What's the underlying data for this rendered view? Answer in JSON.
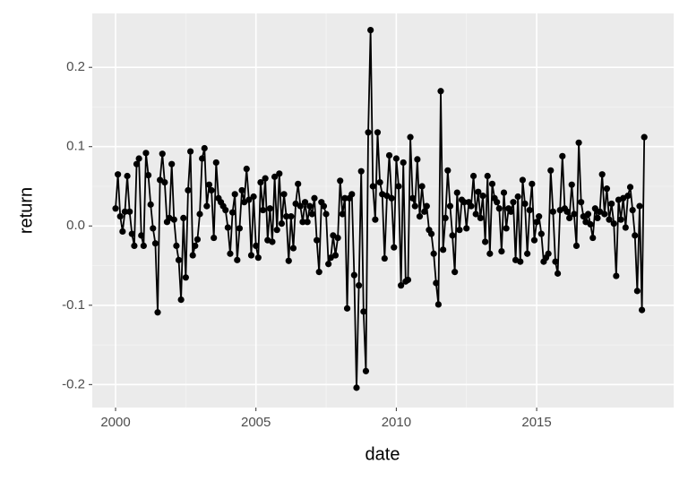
{
  "chart_data": {
    "type": "line",
    "xlabel": "date",
    "ylabel": "return",
    "color": "#000000",
    "grid": true,
    "x": [
      2000,
      2000.083,
      2000.167,
      2000.25,
      2000.333,
      2000.417,
      2000.5,
      2000.583,
      2000.667,
      2000.75,
      2000.833,
      2000.917,
      2001,
      2001.083,
      2001.167,
      2001.25,
      2001.333,
      2001.417,
      2001.5,
      2001.583,
      2001.667,
      2001.75,
      2001.833,
      2001.917,
      2002,
      2002.083,
      2002.167,
      2002.25,
      2002.333,
      2002.417,
      2002.5,
      2002.583,
      2002.667,
      2002.75,
      2002.833,
      2002.917,
      2003,
      2003.083,
      2003.167,
      2003.25,
      2003.333,
      2003.417,
      2003.5,
      2003.583,
      2003.667,
      2003.75,
      2003.833,
      2003.917,
      2004,
      2004.083,
      2004.167,
      2004.25,
      2004.333,
      2004.417,
      2004.5,
      2004.583,
      2004.667,
      2004.75,
      2004.833,
      2004.917,
      2005,
      2005.083,
      2005.167,
      2005.25,
      2005.333,
      2005.417,
      2005.5,
      2005.583,
      2005.667,
      2005.75,
      2005.833,
      2005.917,
      2006,
      2006.083,
      2006.167,
      2006.25,
      2006.333,
      2006.417,
      2006.5,
      2006.583,
      2006.667,
      2006.75,
      2006.833,
      2006.917,
      2007,
      2007.083,
      2007.167,
      2007.25,
      2007.333,
      2007.417,
      2007.5,
      2007.583,
      2007.667,
      2007.75,
      2007.833,
      2007.917,
      2008,
      2008.083,
      2008.167,
      2008.25,
      2008.333,
      2008.417,
      2008.5,
      2008.583,
      2008.667,
      2008.75,
      2008.833,
      2008.917,
      2009,
      2009.083,
      2009.167,
      2009.25,
      2009.333,
      2009.417,
      2009.5,
      2009.583,
      2009.667,
      2009.75,
      2009.833,
      2009.917,
      2010,
      2010.083,
      2010.167,
      2010.25,
      2010.333,
      2010.417,
      2010.5,
      2010.583,
      2010.667,
      2010.75,
      2010.833,
      2010.917,
      2011,
      2011.083,
      2011.167,
      2011.25,
      2011.333,
      2011.417,
      2011.5,
      2011.583,
      2011.667,
      2011.75,
      2011.833,
      2011.917,
      2012,
      2012.083,
      2012.167,
      2012.25,
      2012.333,
      2012.417,
      2012.5,
      2012.583,
      2012.667,
      2012.75,
      2012.833,
      2012.917,
      2013,
      2013.083,
      2013.167,
      2013.25,
      2013.333,
      2013.417,
      2013.5,
      2013.583,
      2013.667,
      2013.75,
      2013.833,
      2013.917,
      2014,
      2014.083,
      2014.167,
      2014.25,
      2014.333,
      2014.417,
      2014.5,
      2014.583,
      2014.667,
      2014.75,
      2014.833,
      2014.917,
      2015,
      2015.083,
      2015.167,
      2015.25,
      2015.333,
      2015.417,
      2015.5,
      2015.583,
      2015.667,
      2015.75,
      2015.833,
      2015.917,
      2016,
      2016.083,
      2016.167,
      2016.25,
      2016.333,
      2016.417,
      2016.5,
      2016.583,
      2016.667,
      2016.75,
      2016.833,
      2016.917,
      2017,
      2017.083,
      2017.167,
      2017.25,
      2017.333,
      2017.417,
      2017.5,
      2017.583,
      2017.667,
      2017.75,
      2017.833,
      2017.917,
      2018,
      2018.083,
      2018.167,
      2018.25,
      2018.333,
      2018.417,
      2018.5,
      2018.583,
      2018.667,
      2018.75,
      2018.833
    ],
    "values": [
      0.022,
      0.065,
      0.012,
      -0.007,
      0.018,
      0.063,
      0.018,
      -0.01,
      -0.025,
      0.078,
      0.085,
      -0.012,
      -0.025,
      0.092,
      0.064,
      0.027,
      -0.003,
      -0.022,
      -0.109,
      0.058,
      0.091,
      0.055,
      0.005,
      0.01,
      0.078,
      0.008,
      -0.025,
      -0.043,
      -0.093,
      0.01,
      -0.065,
      0.045,
      0.094,
      -0.037,
      -0.025,
      -0.017,
      0.015,
      0.085,
      0.098,
      0.025,
      0.052,
      0.045,
      -0.015,
      0.08,
      0.035,
      0.03,
      0.025,
      0.02,
      -0.002,
      -0.035,
      0.017,
      0.04,
      -0.043,
      -0.003,
      0.045,
      0.03,
      0.072,
      0.033,
      -0.037,
      0.037,
      -0.025,
      -0.04,
      0.055,
      0.02,
      0.06,
      -0.018,
      0.022,
      -0.02,
      0.062,
      -0.005,
      0.066,
      0.003,
      0.04,
      0.012,
      -0.044,
      0.012,
      -0.028,
      0.028,
      0.053,
      0.025,
      0.005,
      0.03,
      0.005,
      0.025,
      0.015,
      0.035,
      -0.018,
      -0.058,
      0.03,
      0.025,
      0.015,
      -0.048,
      -0.04,
      -0.012,
      -0.037,
      -0.015,
      0.057,
      0.015,
      0.035,
      -0.104,
      0.035,
      0.04,
      -0.062,
      -0.204,
      -0.075,
      0.069,
      -0.108,
      -0.183,
      0.118,
      0.247,
      0.05,
      0.008,
      0.118,
      0.055,
      0.04,
      -0.041,
      0.038,
      0.089,
      0.035,
      -0.027,
      0.085,
      0.05,
      -0.075,
      0.08,
      -0.07,
      -0.068,
      0.112,
      0.035,
      0.025,
      0.084,
      0.012,
      0.05,
      0.018,
      0.025,
      -0.005,
      -0.01,
      -0.035,
      -0.072,
      -0.099,
      0.17,
      -0.03,
      0.01,
      0.07,
      0.025,
      -0.012,
      -0.058,
      0.042,
      -0.005,
      0.033,
      0.03,
      -0.003,
      0.03,
      0.025,
      0.063,
      0.015,
      0.043,
      0.01,
      0.038,
      -0.02,
      0.063,
      -0.035,
      0.053,
      0.035,
      0.03,
      0.022,
      -0.032,
      0.042,
      -0.003,
      0.022,
      0.018,
      0.03,
      -0.043,
      0.037,
      -0.045,
      0.058,
      0.028,
      -0.035,
      0.02,
      0.053,
      -0.018,
      0.005,
      0.012,
      -0.01,
      -0.045,
      -0.04,
      -0.035,
      0.07,
      0.018,
      -0.045,
      -0.06,
      0.02,
      0.088,
      0.022,
      0.018,
      0.01,
      0.052,
      0.015,
      -0.025,
      0.105,
      0.03,
      0.012,
      0.005,
      0.015,
      0.002,
      -0.015,
      0.022,
      0.01,
      0.018,
      0.065,
      0.015,
      0.047,
      0.008,
      0.028,
      0.003,
      -0.063,
      0.033,
      0.008,
      0.035,
      -0.002,
      0.038,
      0.049,
      0.02,
      -0.012,
      -0.082,
      0.025,
      -0.106,
      0.112
    ],
    "xlim": [
      1999.17,
      2019.88
    ],
    "xticks": [
      2000,
      2005,
      2010,
      2015
    ],
    "ylim": [
      -0.229,
      0.268
    ],
    "yticks": [
      -0.2,
      -0.1,
      {
        "value": 0,
        "label": "0.0"
      },
      0.1,
      0.2
    ]
  }
}
